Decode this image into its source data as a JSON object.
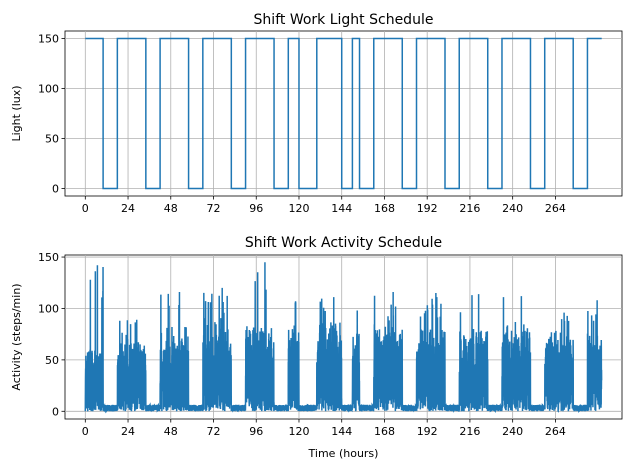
{
  "chart_data": [
    {
      "type": "line",
      "title": "Shift Work Light Schedule",
      "xlabel": "",
      "ylabel": "Light (lux)",
      "xlim": [
        -11.4,
        301.4
      ],
      "ylim": [
        -7.5,
        157.5
      ],
      "xticks": [
        0,
        24,
        48,
        72,
        96,
        120,
        144,
        168,
        192,
        216,
        240,
        264
      ],
      "yticks": [
        0,
        50,
        100,
        150
      ],
      "grid": true,
      "color": "#1f77b4",
      "series": [
        {
          "x": [
            0,
            10,
            10,
            18,
            18,
            34,
            34,
            42,
            42,
            58,
            58,
            66,
            66,
            82,
            82,
            90,
            90,
            106,
            106,
            114,
            114,
            120,
            120,
            130,
            130,
            144,
            144,
            150,
            150,
            154,
            154,
            162,
            162,
            178,
            178,
            186,
            186,
            202,
            202,
            210,
            210,
            226,
            226,
            234,
            234,
            250,
            250,
            258,
            258,
            274,
            274,
            282,
            282,
            290
          ],
          "y": [
            150,
            150,
            0,
            0,
            150,
            150,
            0,
            0,
            150,
            150,
            0,
            0,
            150,
            150,
            0,
            0,
            150,
            150,
            0,
            0,
            150,
            150,
            0,
            0,
            150,
            150,
            0,
            0,
            150,
            150,
            0,
            0,
            150,
            150,
            0,
            0,
            150,
            150,
            0,
            0,
            150,
            150,
            0,
            0,
            150,
            150,
            0,
            0,
            150,
            150,
            0,
            0,
            150,
            150
          ]
        }
      ]
    },
    {
      "type": "line",
      "title": "Shift Work Activity Schedule",
      "xlabel": "Time (hours)",
      "ylabel": "Activity (steps/min)",
      "xlim": [
        -11.4,
        301.4
      ],
      "ylim": [
        -7.5,
        152
      ],
      "xticks": [
        0,
        24,
        48,
        72,
        96,
        120,
        144,
        168,
        192,
        216,
        240,
        264
      ],
      "yticks": [
        0,
        50,
        100,
        150
      ],
      "grid": true,
      "color": "#1f77b4",
      "active_windows": [
        {
          "start": 0,
          "end": 10,
          "level": 62,
          "peak": 142
        },
        {
          "start": 18,
          "end": 34,
          "level": 66,
          "peak": 89
        },
        {
          "start": 42,
          "end": 58,
          "level": 78,
          "peak": 116
        },
        {
          "start": 66,
          "end": 82,
          "level": 80,
          "peak": 120
        },
        {
          "start": 90,
          "end": 106,
          "level": 82,
          "peak": 145
        },
        {
          "start": 114,
          "end": 120,
          "level": 78,
          "peak": 107
        },
        {
          "start": 130,
          "end": 144,
          "level": 84,
          "peak": 111
        },
        {
          "start": 150,
          "end": 154,
          "level": 74,
          "peak": 98
        },
        {
          "start": 162,
          "end": 178,
          "level": 80,
          "peak": 116
        },
        {
          "start": 186,
          "end": 202,
          "level": 82,
          "peak": 115
        },
        {
          "start": 210,
          "end": 226,
          "level": 82,
          "peak": 114
        },
        {
          "start": 234,
          "end": 250,
          "level": 80,
          "peak": 112
        },
        {
          "start": 258,
          "end": 274,
          "level": 72,
          "peak": 96
        },
        {
          "start": 282,
          "end": 290,
          "level": 80,
          "peak": 108
        }
      ],
      "rest_level": 4
    }
  ]
}
